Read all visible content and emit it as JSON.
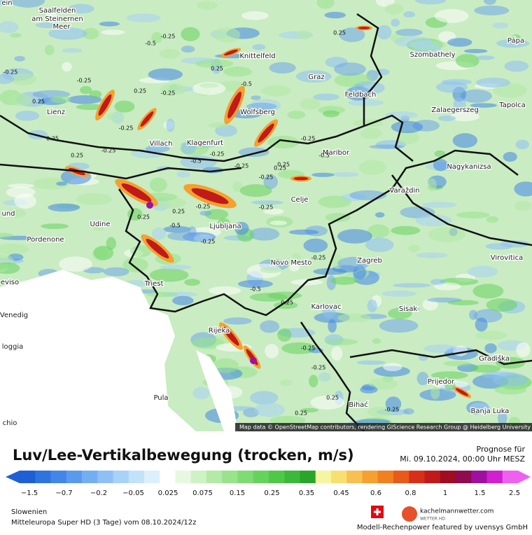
{
  "map": {
    "cities": [
      "Saalfelden",
      "am Steinernen",
      "Meer",
      "Knittelfeld",
      "Graz",
      "Szombathely",
      "Pápa",
      "Feldbach",
      "Lienz",
      "Wolfsberg",
      "Zalaegerszeg",
      "Tapolca",
      "Villach",
      "Klagenfurt",
      "Maribor",
      "Nagykanizsa",
      "Varaždin",
      "Celje",
      "Udine",
      "Ljubljana",
      "Pordenone",
      "Novo Mesto",
      "Zagreb",
      "Virovitica",
      "Triest",
      "Karlovac",
      "Sisak",
      "Rijeka",
      "Gradiška",
      "Prijedor",
      "Pula",
      "Bihać",
      "Banja Luka",
      "ein",
      "und",
      "eviso",
      "Venedig",
      "loggia",
      "chio"
    ],
    "contour_labels": [
      "-0.25",
      "-0.5",
      "0.25",
      "-0.25",
      "0.25",
      "-0.25",
      "0.25",
      "0.25",
      "-0.5",
      "-0.25",
      "-0.25",
      "0.25",
      "-0.5",
      "-0.25",
      "-0.25",
      "0.25",
      "-0.25",
      "-0.25",
      "0.25",
      "-0.5",
      "-0.25",
      "0.25",
      "-0.25",
      "0.25",
      "-0.25",
      "0.25",
      "-0.5",
      "-0.25",
      "-0.25",
      "-0.5",
      "0.25",
      "-0.25",
      "-0.25",
      "0.25",
      "-0.25",
      "0.25"
    ],
    "attribution": "Map data © OpenStreetMap contributors, rendering GIScience Research Group @ Heidelberg University"
  },
  "header": {
    "title": "Luv/Lee-Vertikalbewegung (trocken, m/s)",
    "forecast_label": "Prognose für",
    "forecast_time": "Mi. 09.10.2024, 00:00 Uhr MESZ"
  },
  "legend": {
    "colors": [
      "#1f5fd6",
      "#2f73e0",
      "#4186e8",
      "#5a9aee",
      "#74aef2",
      "#8ec0f5",
      "#a8d2f8",
      "#c2e2fa",
      "#dcf0fc",
      "#ffffff",
      "#e6f9e0",
      "#cdf2c4",
      "#b2eaa6",
      "#98e38c",
      "#7fdb74",
      "#66d25e",
      "#4fc84a",
      "#3cb83a",
      "#2aa52c",
      "#f6f6a0",
      "#f8e070",
      "#f8c050",
      "#f5a030",
      "#f08020",
      "#e85a18",
      "#d83018",
      "#c01a1a",
      "#a00c20",
      "#900a50",
      "#a010a0",
      "#d020d0",
      "#f060f0"
    ],
    "ticks": [
      "−1.5",
      "−0.7",
      "−0.2",
      "−0.05",
      "0.025",
      "0.075",
      "0.15",
      "0.25",
      "0.35",
      "0.45",
      "0.6",
      "0.8",
      "1",
      "1.5",
      "2.5"
    ]
  },
  "footer": {
    "region": "Slowenien",
    "model": "Mitteleuropa Super HD (3 Tage) vom 08.10.2024/12z",
    "brand": "kachelmannwetter.com",
    "brand_sub": "WETTER HD",
    "credit": "Modell-Rechenpower featured by uvensys GmbH"
  }
}
